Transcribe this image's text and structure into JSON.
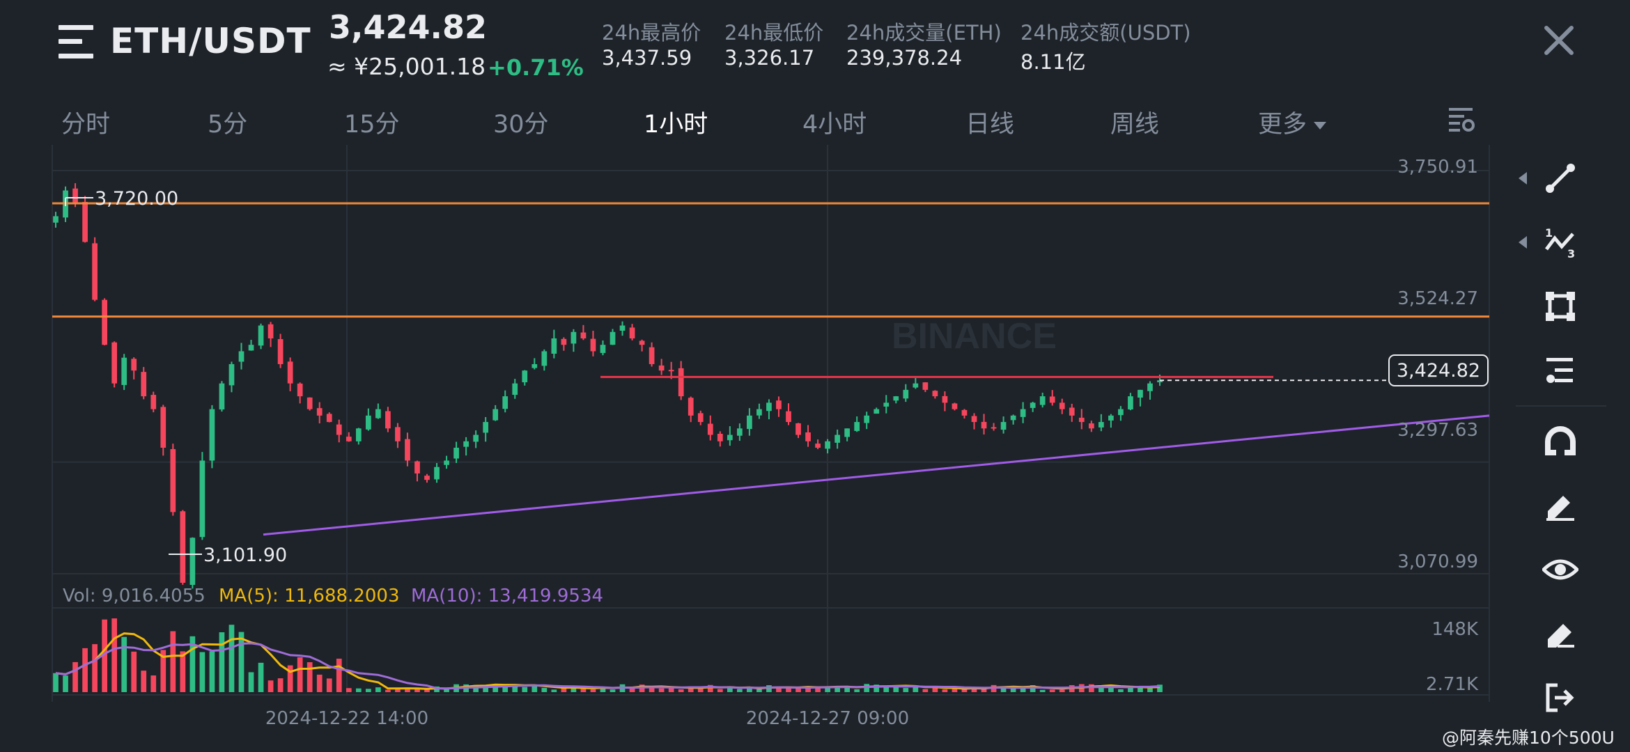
{
  "header": {
    "pair": "ETH/USDT",
    "last_price": "3,424.82",
    "cny_price": "≈ ¥25,001.18",
    "change_pct": "+0.71%",
    "stats": [
      {
        "label": "24h最高价",
        "value": "3,437.59"
      },
      {
        "label": "24h最低价",
        "value": "3,326.17"
      },
      {
        "label": "24h成交量(ETH)",
        "value": "239,378.24"
      },
      {
        "label": "24h成交额(USDT)",
        "value": "8.11亿"
      }
    ]
  },
  "tabs": [
    "分时",
    "5分",
    "15分",
    "30分",
    "1小时",
    "4小时",
    "日线",
    "周线",
    "更多"
  ],
  "active_tab": "1小时",
  "watermark": "BINANCE",
  "volume_legend": {
    "vol": "Vol: 9,016.4055",
    "ma5": "MA(5): 11,688.2003",
    "ma10": "MA(10): 13,419.9534"
  },
  "price_axis": [
    "3,750.91",
    "3,524.27",
    "3,297.63",
    "3,070.99"
  ],
  "volume_axis": [
    "148K",
    "2.71K"
  ],
  "time_axis": [
    "2024-12-22 14:00",
    "2024-12-27 09:00"
  ],
  "annotations": {
    "high": "3,720.00",
    "low": "3,101.90",
    "current": "3,424.82"
  },
  "toolbar_icons": [
    "trend-line-icon",
    "wave-icon",
    "rectangle-icon",
    "fibonacci-icon",
    "magnet-icon",
    "brush-icon",
    "eye-icon",
    "eraser-icon",
    "exit-icon"
  ],
  "footer_credit": "@阿秦先赚10个500U",
  "colors": {
    "background": "#1e2329",
    "up": "#2ebd85",
    "down": "#f6465d",
    "orange_line": "#f0883a",
    "red_line": "#e8364a",
    "purple_line": "#a15ce8",
    "ma5": "#f0b90b",
    "ma10": "#9f6cd8"
  },
  "chart_data": {
    "type": "candlestick",
    "x_labels": [
      "2024-12-22 14:00",
      "2024-12-27 09:00"
    ],
    "y_range": [
      3070.99,
      3750.91
    ],
    "y_ticks": [
      3750.91,
      3524.27,
      3297.63,
      3070.99
    ],
    "marked_high": 3720.0,
    "marked_low": 3101.9,
    "current_price": 3424.82,
    "horizontal_lines": [
      3700,
      3524,
      3430
    ],
    "trendline": {
      "from": 3185,
      "to": 3370
    },
    "close_path": [
      3680,
      3720,
      3700,
      3640,
      3550,
      3480,
      3420,
      3460,
      3440,
      3400,
      3380,
      3320,
      3220,
      3110,
      3180,
      3300,
      3380,
      3420,
      3450,
      3470,
      3480,
      3510,
      3490,
      3450,
      3420,
      3400,
      3380,
      3370,
      3360,
      3340,
      3330,
      3350,
      3370,
      3380,
      3350,
      3330,
      3300,
      3280,
      3270,
      3290,
      3300,
      3320,
      3330,
      3340,
      3360,
      3380,
      3400,
      3420,
      3440,
      3450,
      3470,
      3490,
      3480,
      3500,
      3490,
      3470,
      3480,
      3500,
      3510,
      3490,
      3480,
      3450,
      3440,
      3440,
      3400,
      3370,
      3360,
      3340,
      3330,
      3340,
      3350,
      3370,
      3380,
      3390,
      3380,
      3360,
      3340,
      3330,
      3320,
      3330,
      3340,
      3350,
      3360,
      3370,
      3380,
      3390,
      3400,
      3410,
      3420,
      3410,
      3400,
      3390,
      3380,
      3370,
      3360,
      3350,
      3350,
      3360,
      3370,
      3380,
      3390,
      3400,
      3390,
      3380,
      3370,
      3360,
      3350,
      3360,
      3370,
      3380,
      3400,
      3410,
      3420,
      3424.82
    ],
    "volume_axis": [
      "148K",
      "2.71K"
    ],
    "vol": 9016.4055,
    "ma5": 11688.2003,
    "ma10": 13419.9534
  }
}
